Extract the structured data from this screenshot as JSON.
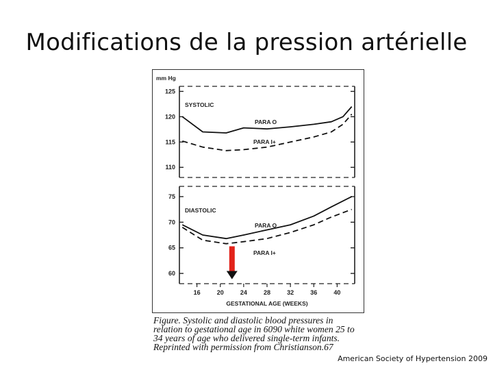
{
  "slide": {
    "title": "Modifications de la pression artérielle",
    "source": "American Society of Hypertension 2009"
  },
  "figure": {
    "caption": "Figure. Systolic and diastolic blood pressures in\nrelation to gestational age in 6090 white women 25 to\n34 years of age who delivered single-term infants.\nReprinted with permission from Christianson.67"
  },
  "chart_data": [
    {
      "type": "line",
      "panel": "systolic",
      "ylabel": "mm Hg",
      "panel_label": "SYSTOLIC",
      "ylim": [
        108,
        126
      ],
      "yticks": [
        110,
        115,
        120,
        125
      ],
      "xlabel": "GESTATIONAL AGE (WEEKS)",
      "xticks": [
        16,
        20,
        24,
        28,
        32,
        36,
        40
      ],
      "xlim": [
        13,
        43
      ],
      "series": [
        {
          "name": "PARA O",
          "style": "solid",
          "x": [
            13.5,
            17,
            21,
            24,
            28,
            32,
            36,
            39,
            41,
            42.5
          ],
          "y": [
            120,
            117,
            116.8,
            117.8,
            117.6,
            118,
            118.5,
            119,
            120,
            122
          ]
        },
        {
          "name": "PARA I+",
          "style": "dashed",
          "x": [
            13.5,
            17,
            21,
            24,
            28,
            32,
            36,
            39,
            41,
            42.5
          ],
          "y": [
            115.2,
            114,
            113.3,
            113.5,
            114,
            115,
            116,
            117,
            118.5,
            120.5
          ]
        }
      ]
    },
    {
      "type": "line",
      "panel": "diastolic",
      "panel_label": "DIASTOLIC",
      "ylim": [
        58,
        77
      ],
      "yticks": [
        60,
        65,
        70,
        75
      ],
      "xlabel": "GESTATIONAL AGE (WEEKS)",
      "xticks": [
        16,
        20,
        24,
        28,
        32,
        36,
        40
      ],
      "xlim": [
        13,
        43
      ],
      "series": [
        {
          "name": "PARA O",
          "style": "solid",
          "x": [
            13.5,
            17,
            21,
            24,
            28,
            32,
            36,
            39,
            42.5
          ],
          "y": [
            69.5,
            67.5,
            66.8,
            67.5,
            68.5,
            69.5,
            71.2,
            73,
            75
          ]
        },
        {
          "name": "PARA I+",
          "style": "dashed",
          "x": [
            13.5,
            17,
            21,
            24,
            28,
            32,
            36,
            39,
            42.5
          ],
          "y": [
            69,
            66.5,
            65.8,
            66.2,
            66.8,
            68,
            69.5,
            71,
            72.5
          ]
        }
      ],
      "annotation": {
        "type": "down-arrow",
        "x": 22,
        "color": "#e2231a"
      }
    }
  ]
}
